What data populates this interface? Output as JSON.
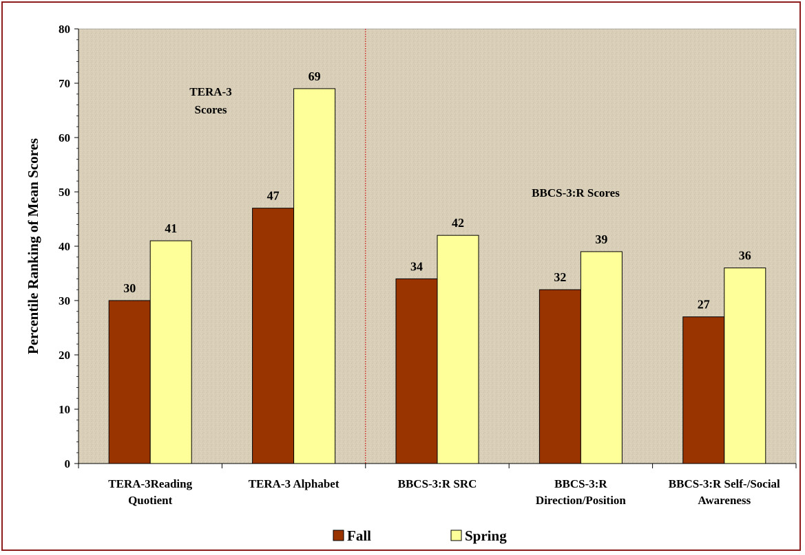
{
  "chart_data": {
    "type": "bar",
    "categories": [
      [
        "TERA-3Reading",
        "Quotient"
      ],
      [
        "TERA-3 Alphabet"
      ],
      [
        "BBCS-3:R SRC"
      ],
      [
        "BBCS-3:R",
        "Direction/Position"
      ],
      [
        "BBCS-3:R Self-/Social",
        "Awareness"
      ]
    ],
    "series": [
      {
        "name": "Fall",
        "values": [
          30,
          47,
          34,
          32,
          27
        ],
        "color": "#993300"
      },
      {
        "name": "Spring",
        "values": [
          41,
          69,
          42,
          39,
          36
        ],
        "color": "#ffff99"
      }
    ],
    "ylabel": "Percentile Ranking of Mean Scores",
    "ylim": [
      0,
      80
    ],
    "yticks": [
      0,
      10,
      20,
      30,
      40,
      50,
      60,
      70,
      80
    ],
    "annotations": [
      {
        "lines": [
          "TERA-3",
          "Scores"
        ]
      },
      {
        "lines": [
          "BBCS-3:R Scores"
        ]
      }
    ],
    "divider": {
      "after_category_index": 1,
      "style": "dotted",
      "color": "#cc0000"
    },
    "legend_position": "bottom",
    "plot_background": "#d8cdb5",
    "frame_color": "#8b1a1a",
    "grid": false
  }
}
